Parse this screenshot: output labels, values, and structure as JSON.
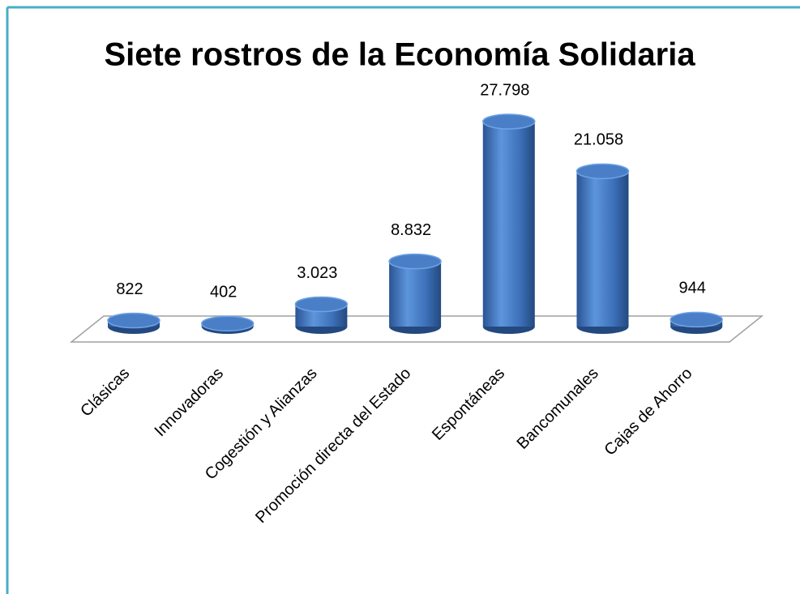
{
  "chart_data": {
    "type": "cylinder-bar",
    "title": "Siete rostros de la Economía Solidaria",
    "categories": [
      "Clásicas",
      "Innovadoras",
      "Cogestión y Alianzas",
      "Promoción directa del Estado",
      "Espontáneas",
      "Bancomunales",
      "Cajas de Ahorro"
    ],
    "values": [
      822,
      402,
      3023,
      8832,
      27798,
      21058,
      944
    ],
    "value_labels": [
      "822",
      "402",
      "3.023",
      "8.832",
      "27.798",
      "21.058",
      "944"
    ],
    "color": "#4a7fc8"
  }
}
